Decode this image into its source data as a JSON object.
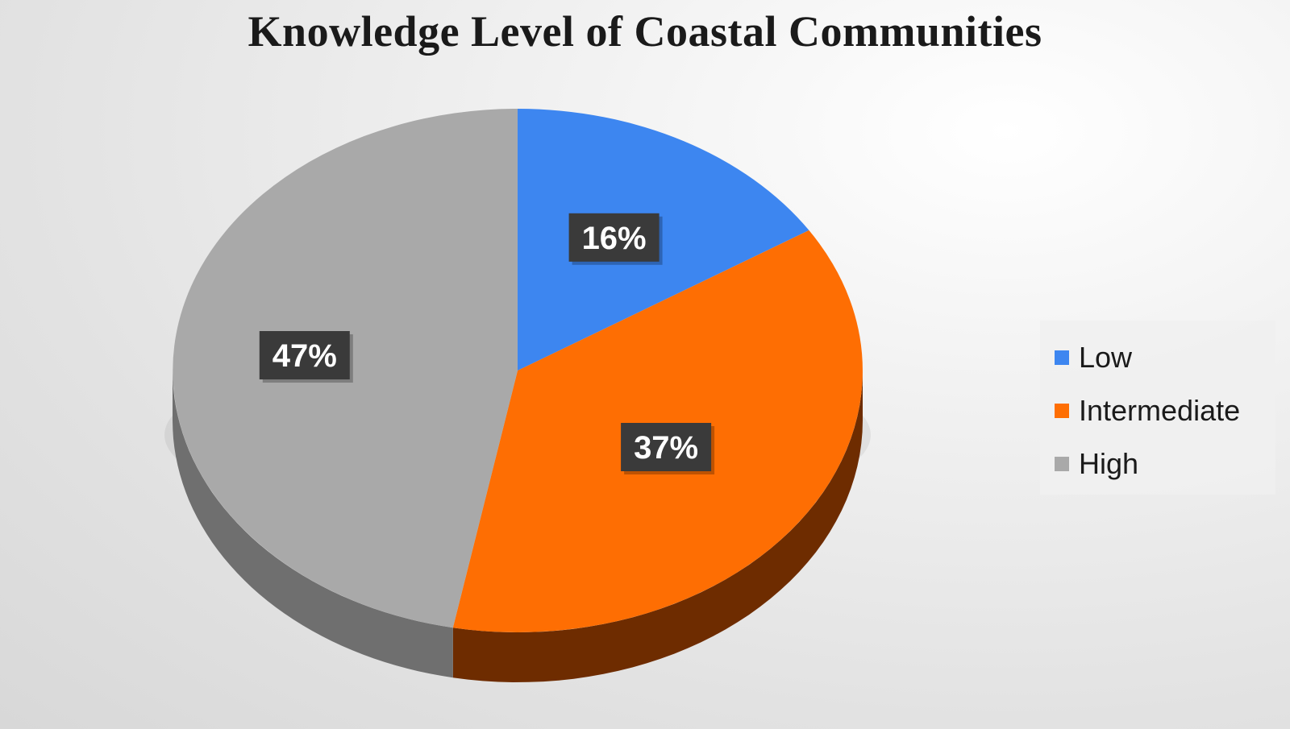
{
  "chart_data": {
    "type": "pie",
    "title": "Knowledge Level of Coastal Communities",
    "categories": [
      "Low",
      "Intermediate",
      "High"
    ],
    "values": [
      16,
      37,
      47
    ],
    "labels": [
      "16%",
      "37%",
      "47%"
    ],
    "colors": [
      "#3d86f0",
      "#fe6e03",
      "#a9a9a9"
    ],
    "side_colors": [
      "#1f4f99",
      "#6e2c00",
      "#6f6f6f"
    ],
    "legend_position": "right",
    "style": "3d"
  }
}
